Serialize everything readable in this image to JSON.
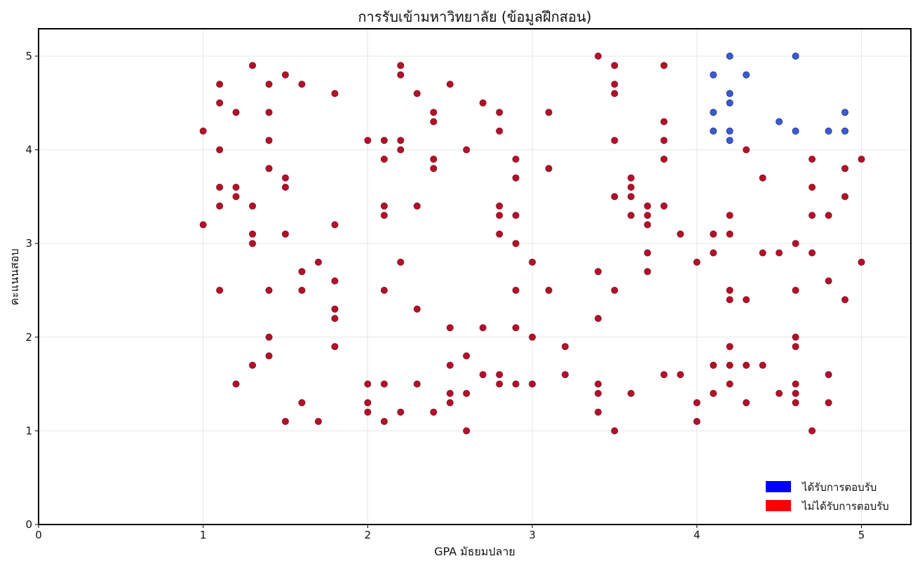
{
  "chart_data": {
    "type": "scatter",
    "title": "การรับเข้ามหาวิทยาลัย (ข้อมูลฝึกสอน)",
    "xlabel": "GPA มัธยมปลาย",
    "ylabel": "คะแนนสอบ",
    "xlim": [
      0,
      5.3
    ],
    "ylim": [
      0,
      5.3
    ],
    "xticks": [
      "0",
      "1",
      "2",
      "3",
      "4",
      "5"
    ],
    "yticks": [
      "0",
      "1",
      "2",
      "3",
      "4",
      "5"
    ],
    "grid": true,
    "legend_position": "bottom-right",
    "series": [
      {
        "name": "ได้รับการตอบรับ",
        "color": "#3b5bcf",
        "legend_color": "#0000ff",
        "points": [
          [
            4.2,
            5.0
          ],
          [
            4.6,
            5.0
          ],
          [
            4.1,
            4.8
          ],
          [
            4.3,
            4.8
          ],
          [
            4.2,
            4.6
          ],
          [
            4.2,
            4.5
          ],
          [
            4.1,
            4.4
          ],
          [
            4.9,
            4.4
          ],
          [
            4.5,
            4.3
          ],
          [
            4.1,
            4.2
          ],
          [
            4.2,
            4.2
          ],
          [
            4.6,
            4.2
          ],
          [
            4.8,
            4.2
          ],
          [
            4.9,
            4.2
          ],
          [
            4.2,
            4.1
          ]
        ]
      },
      {
        "name": "ไม่ได้รับการตอบรับ",
        "color": "#b0122a",
        "legend_color": "#ff0000",
        "points": [
          [
            1.0,
            4.2
          ],
          [
            1.0,
            3.2
          ],
          [
            1.1,
            4.7
          ],
          [
            1.1,
            4.5
          ],
          [
            1.1,
            4.0
          ],
          [
            1.1,
            3.6
          ],
          [
            1.1,
            3.4
          ],
          [
            1.1,
            2.5
          ],
          [
            1.2,
            4.4
          ],
          [
            1.2,
            3.6
          ],
          [
            1.2,
            3.5
          ],
          [
            1.2,
            1.5
          ],
          [
            1.3,
            4.9
          ],
          [
            1.3,
            3.4
          ],
          [
            1.3,
            3.1
          ],
          [
            1.3,
            3.0
          ],
          [
            1.3,
            1.7
          ],
          [
            1.4,
            4.7
          ],
          [
            1.4,
            4.4
          ],
          [
            1.4,
            4.1
          ],
          [
            1.4,
            3.8
          ],
          [
            1.4,
            2.5
          ],
          [
            1.4,
            2.0
          ],
          [
            1.4,
            1.8
          ],
          [
            1.5,
            4.8
          ],
          [
            1.5,
            3.7
          ],
          [
            1.5,
            3.6
          ],
          [
            1.5,
            3.1
          ],
          [
            1.5,
            1.1
          ],
          [
            1.6,
            4.7
          ],
          [
            1.6,
            2.7
          ],
          [
            1.6,
            2.5
          ],
          [
            1.6,
            1.3
          ],
          [
            1.7,
            2.8
          ],
          [
            1.7,
            1.1
          ],
          [
            1.8,
            4.6
          ],
          [
            1.8,
            3.2
          ],
          [
            1.8,
            2.6
          ],
          [
            1.8,
            2.3
          ],
          [
            1.8,
            2.2
          ],
          [
            1.8,
            1.9
          ],
          [
            2.0,
            4.1
          ],
          [
            2.0,
            1.5
          ],
          [
            2.0,
            1.3
          ],
          [
            2.0,
            1.2
          ],
          [
            2.1,
            4.1
          ],
          [
            2.1,
            3.9
          ],
          [
            2.1,
            3.4
          ],
          [
            2.1,
            3.3
          ],
          [
            2.1,
            2.5
          ],
          [
            2.1,
            1.5
          ],
          [
            2.1,
            1.1
          ],
          [
            2.2,
            4.9
          ],
          [
            2.2,
            4.8
          ],
          [
            2.2,
            4.1
          ],
          [
            2.2,
            4.0
          ],
          [
            2.2,
            2.8
          ],
          [
            2.2,
            1.2
          ],
          [
            2.3,
            4.6
          ],
          [
            2.3,
            3.4
          ],
          [
            2.3,
            2.3
          ],
          [
            2.3,
            1.5
          ],
          [
            2.4,
            4.4
          ],
          [
            2.4,
            4.3
          ],
          [
            2.4,
            3.9
          ],
          [
            2.4,
            3.8
          ],
          [
            2.4,
            1.2
          ],
          [
            2.5,
            4.7
          ],
          [
            2.5,
            2.1
          ],
          [
            2.5,
            1.7
          ],
          [
            2.5,
            1.4
          ],
          [
            2.5,
            1.3
          ],
          [
            2.6,
            4.0
          ],
          [
            2.6,
            1.8
          ],
          [
            2.6,
            1.4
          ],
          [
            2.6,
            1.0
          ],
          [
            2.7,
            4.5
          ],
          [
            2.7,
            2.1
          ],
          [
            2.7,
            1.6
          ],
          [
            2.8,
            4.4
          ],
          [
            2.8,
            4.2
          ],
          [
            2.8,
            3.4
          ],
          [
            2.8,
            3.3
          ],
          [
            2.8,
            3.1
          ],
          [
            2.8,
            1.6
          ],
          [
            2.8,
            1.5
          ],
          [
            2.9,
            3.9
          ],
          [
            2.9,
            3.7
          ],
          [
            2.9,
            3.3
          ],
          [
            2.9,
            3.0
          ],
          [
            2.9,
            2.5
          ],
          [
            2.9,
            2.1
          ],
          [
            2.9,
            1.5
          ],
          [
            3.0,
            2.8
          ],
          [
            3.0,
            2.0
          ],
          [
            3.0,
            1.5
          ],
          [
            3.1,
            4.4
          ],
          [
            3.1,
            3.8
          ],
          [
            3.1,
            2.5
          ],
          [
            3.2,
            1.9
          ],
          [
            3.2,
            1.6
          ],
          [
            3.4,
            5.0
          ],
          [
            3.4,
            2.7
          ],
          [
            3.4,
            2.2
          ],
          [
            3.4,
            1.5
          ],
          [
            3.4,
            1.4
          ],
          [
            3.4,
            1.2
          ],
          [
            3.5,
            4.9
          ],
          [
            3.5,
            4.7
          ],
          [
            3.5,
            4.6
          ],
          [
            3.5,
            4.1
          ],
          [
            3.5,
            3.5
          ],
          [
            3.5,
            2.5
          ],
          [
            3.5,
            1.0
          ],
          [
            3.6,
            3.7
          ],
          [
            3.6,
            3.6
          ],
          [
            3.6,
            3.5
          ],
          [
            3.6,
            3.3
          ],
          [
            3.6,
            1.4
          ],
          [
            3.7,
            3.4
          ],
          [
            3.7,
            3.3
          ],
          [
            3.7,
            3.2
          ],
          [
            3.7,
            2.9
          ],
          [
            3.7,
            2.7
          ],
          [
            3.8,
            4.9
          ],
          [
            3.8,
            4.3
          ],
          [
            3.8,
            4.1
          ],
          [
            3.8,
            3.9
          ],
          [
            3.8,
            3.4
          ],
          [
            3.8,
            1.6
          ],
          [
            3.9,
            3.1
          ],
          [
            3.9,
            1.6
          ],
          [
            4.0,
            2.8
          ],
          [
            4.0,
            1.3
          ],
          [
            4.0,
            1.1
          ],
          [
            4.1,
            3.1
          ],
          [
            4.1,
            2.9
          ],
          [
            4.1,
            1.7
          ],
          [
            4.1,
            1.4
          ],
          [
            4.2,
            3.3
          ],
          [
            4.2,
            3.1
          ],
          [
            4.2,
            2.5
          ],
          [
            4.2,
            2.4
          ],
          [
            4.2,
            1.9
          ],
          [
            4.2,
            1.7
          ],
          [
            4.2,
            1.5
          ],
          [
            4.3,
            4.0
          ],
          [
            4.3,
            2.4
          ],
          [
            4.3,
            1.7
          ],
          [
            4.3,
            1.3
          ],
          [
            4.4,
            3.7
          ],
          [
            4.4,
            2.9
          ],
          [
            4.4,
            1.7
          ],
          [
            4.5,
            2.9
          ],
          [
            4.5,
            1.4
          ],
          [
            4.6,
            3.0
          ],
          [
            4.6,
            2.5
          ],
          [
            4.6,
            2.0
          ],
          [
            4.6,
            1.9
          ],
          [
            4.6,
            1.5
          ],
          [
            4.6,
            1.4
          ],
          [
            4.6,
            1.3
          ],
          [
            4.7,
            3.9
          ],
          [
            4.7,
            3.6
          ],
          [
            4.7,
            3.3
          ],
          [
            4.7,
            2.9
          ],
          [
            4.7,
            1.0
          ],
          [
            4.8,
            3.3
          ],
          [
            4.8,
            2.6
          ],
          [
            4.8,
            1.6
          ],
          [
            4.8,
            1.3
          ],
          [
            4.9,
            3.8
          ],
          [
            4.9,
            3.5
          ],
          [
            4.9,
            2.4
          ],
          [
            5.0,
            3.9
          ],
          [
            5.0,
            2.8
          ]
        ]
      }
    ]
  }
}
